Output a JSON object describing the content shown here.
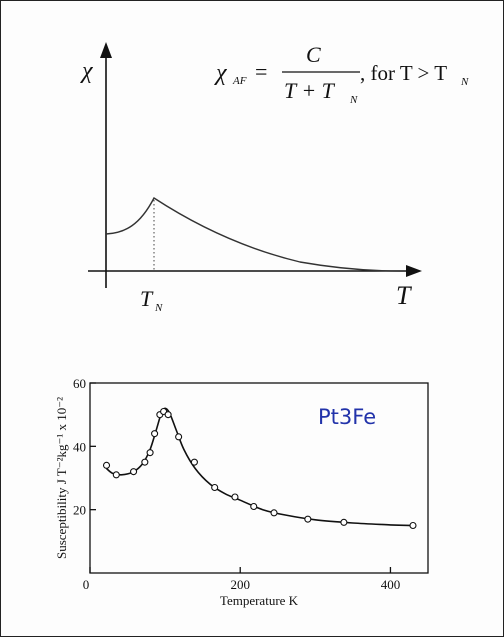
{
  "chart_data": [
    {
      "type": "line",
      "title": "",
      "ylabel": "χ",
      "xlabel": "T",
      "x_marker_label": "T_N",
      "formula": {
        "lhs": "χ",
        "lhs_sub": "AF",
        "numerator": "C",
        "denominator_a": "T + T",
        "denominator_sub": "N",
        "condition_prefix": ", for T > T",
        "condition_sub": "N"
      },
      "curve_description": "schematic: rises below T_N, cusp at T_N, Curie-Weiss decay above",
      "grid": false
    },
    {
      "type": "scatter",
      "title": "",
      "annotation": "Pt3Fe",
      "ylabel": "Susceptibility  J T⁻²kg⁻¹ x 10⁻²",
      "xlabel": "Temperature K",
      "xlim": [
        0,
        450
      ],
      "ylim": [
        0,
        60
      ],
      "x_ticks": [
        0,
        200,
        400
      ],
      "y_ticks": [
        20,
        40,
        60
      ],
      "points": [
        {
          "x": 22,
          "y": 34
        },
        {
          "x": 35,
          "y": 31
        },
        {
          "x": 58,
          "y": 32
        },
        {
          "x": 73,
          "y": 35
        },
        {
          "x": 80,
          "y": 38
        },
        {
          "x": 86,
          "y": 44
        },
        {
          "x": 93,
          "y": 50
        },
        {
          "x": 98,
          "y": 51
        },
        {
          "x": 104,
          "y": 50
        },
        {
          "x": 118,
          "y": 43
        },
        {
          "x": 139,
          "y": 35
        },
        {
          "x": 166,
          "y": 27
        },
        {
          "x": 193,
          "y": 24
        },
        {
          "x": 218,
          "y": 21
        },
        {
          "x": 245,
          "y": 19
        },
        {
          "x": 290,
          "y": 17
        },
        {
          "x": 338,
          "y": 16
        },
        {
          "x": 430,
          "y": 15
        }
      ],
      "fit_curve": [
        [
          22,
          33
        ],
        [
          30,
          31.5
        ],
        [
          42,
          31
        ],
        [
          58,
          32
        ],
        [
          70,
          34.5
        ],
        [
          80,
          39
        ],
        [
          88,
          45
        ],
        [
          95,
          50.5
        ],
        [
          100,
          52
        ],
        [
          106,
          50.5
        ],
        [
          115,
          45
        ],
        [
          125,
          39
        ],
        [
          140,
          33
        ],
        [
          160,
          28
        ],
        [
          180,
          25
        ],
        [
          200,
          23
        ],
        [
          230,
          20
        ],
        [
          260,
          18.3
        ],
        [
          300,
          16.8
        ],
        [
          350,
          15.8
        ],
        [
          400,
          15.2
        ],
        [
          430,
          15
        ]
      ],
      "grid": false
    }
  ]
}
